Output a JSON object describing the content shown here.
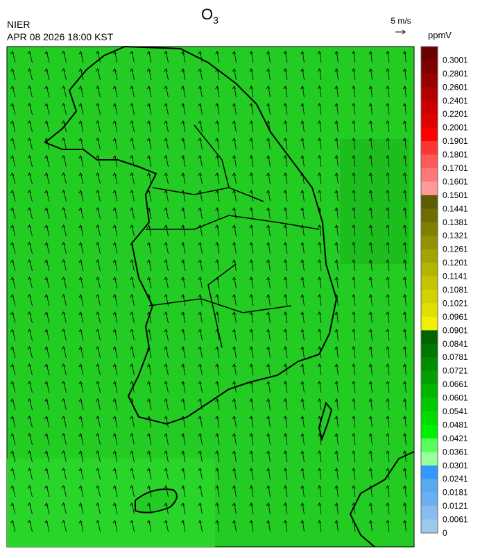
{
  "header": {
    "agency": "NIER",
    "datetime": "APR 08 2026 18:00 KST",
    "title": "O",
    "title_subscript": "3"
  },
  "wind_legend": {
    "label": "5 m/s"
  },
  "colorbar": {
    "unit": "ppmV",
    "labels": [
      0.3001,
      0.2801,
      0.2601,
      0.2401,
      0.2201,
      0.2001,
      0.1901,
      0.1801,
      0.1701,
      0.1601,
      0.1501,
      0.1441,
      0.1381,
      0.1321,
      0.1261,
      0.1201,
      0.1141,
      0.1081,
      0.1021,
      0.0961,
      0.0901,
      0.0841,
      0.0781,
      0.0721,
      0.0661,
      0.0601,
      0.0541,
      0.0481,
      0.0421,
      0.0361,
      0.0301,
      0.0241,
      0.0181,
      0.0121,
      0.0061,
      0
    ],
    "colors": [
      "#6b0000",
      "#800000",
      "#990000",
      "#b30000",
      "#cc0000",
      "#e00000",
      "#ff0000",
      "#ff3535",
      "#ff5a5a",
      "#ff7878",
      "#ff9a9a",
      "#5c5c00",
      "#6e6e00",
      "#808000",
      "#929200",
      "#a4a400",
      "#b4b400",
      "#c4c400",
      "#d2d200",
      "#e0e000",
      "#f0f000",
      "#006400",
      "#007800",
      "#008c00",
      "#00a000",
      "#00b400",
      "#00c800",
      "#00dc00",
      "#00f000",
      "#55ff55",
      "#99ff99",
      "#3399ff",
      "#55aaf0",
      "#6aaff0",
      "#88bbee",
      "#9cc8ec"
    ]
  }
}
